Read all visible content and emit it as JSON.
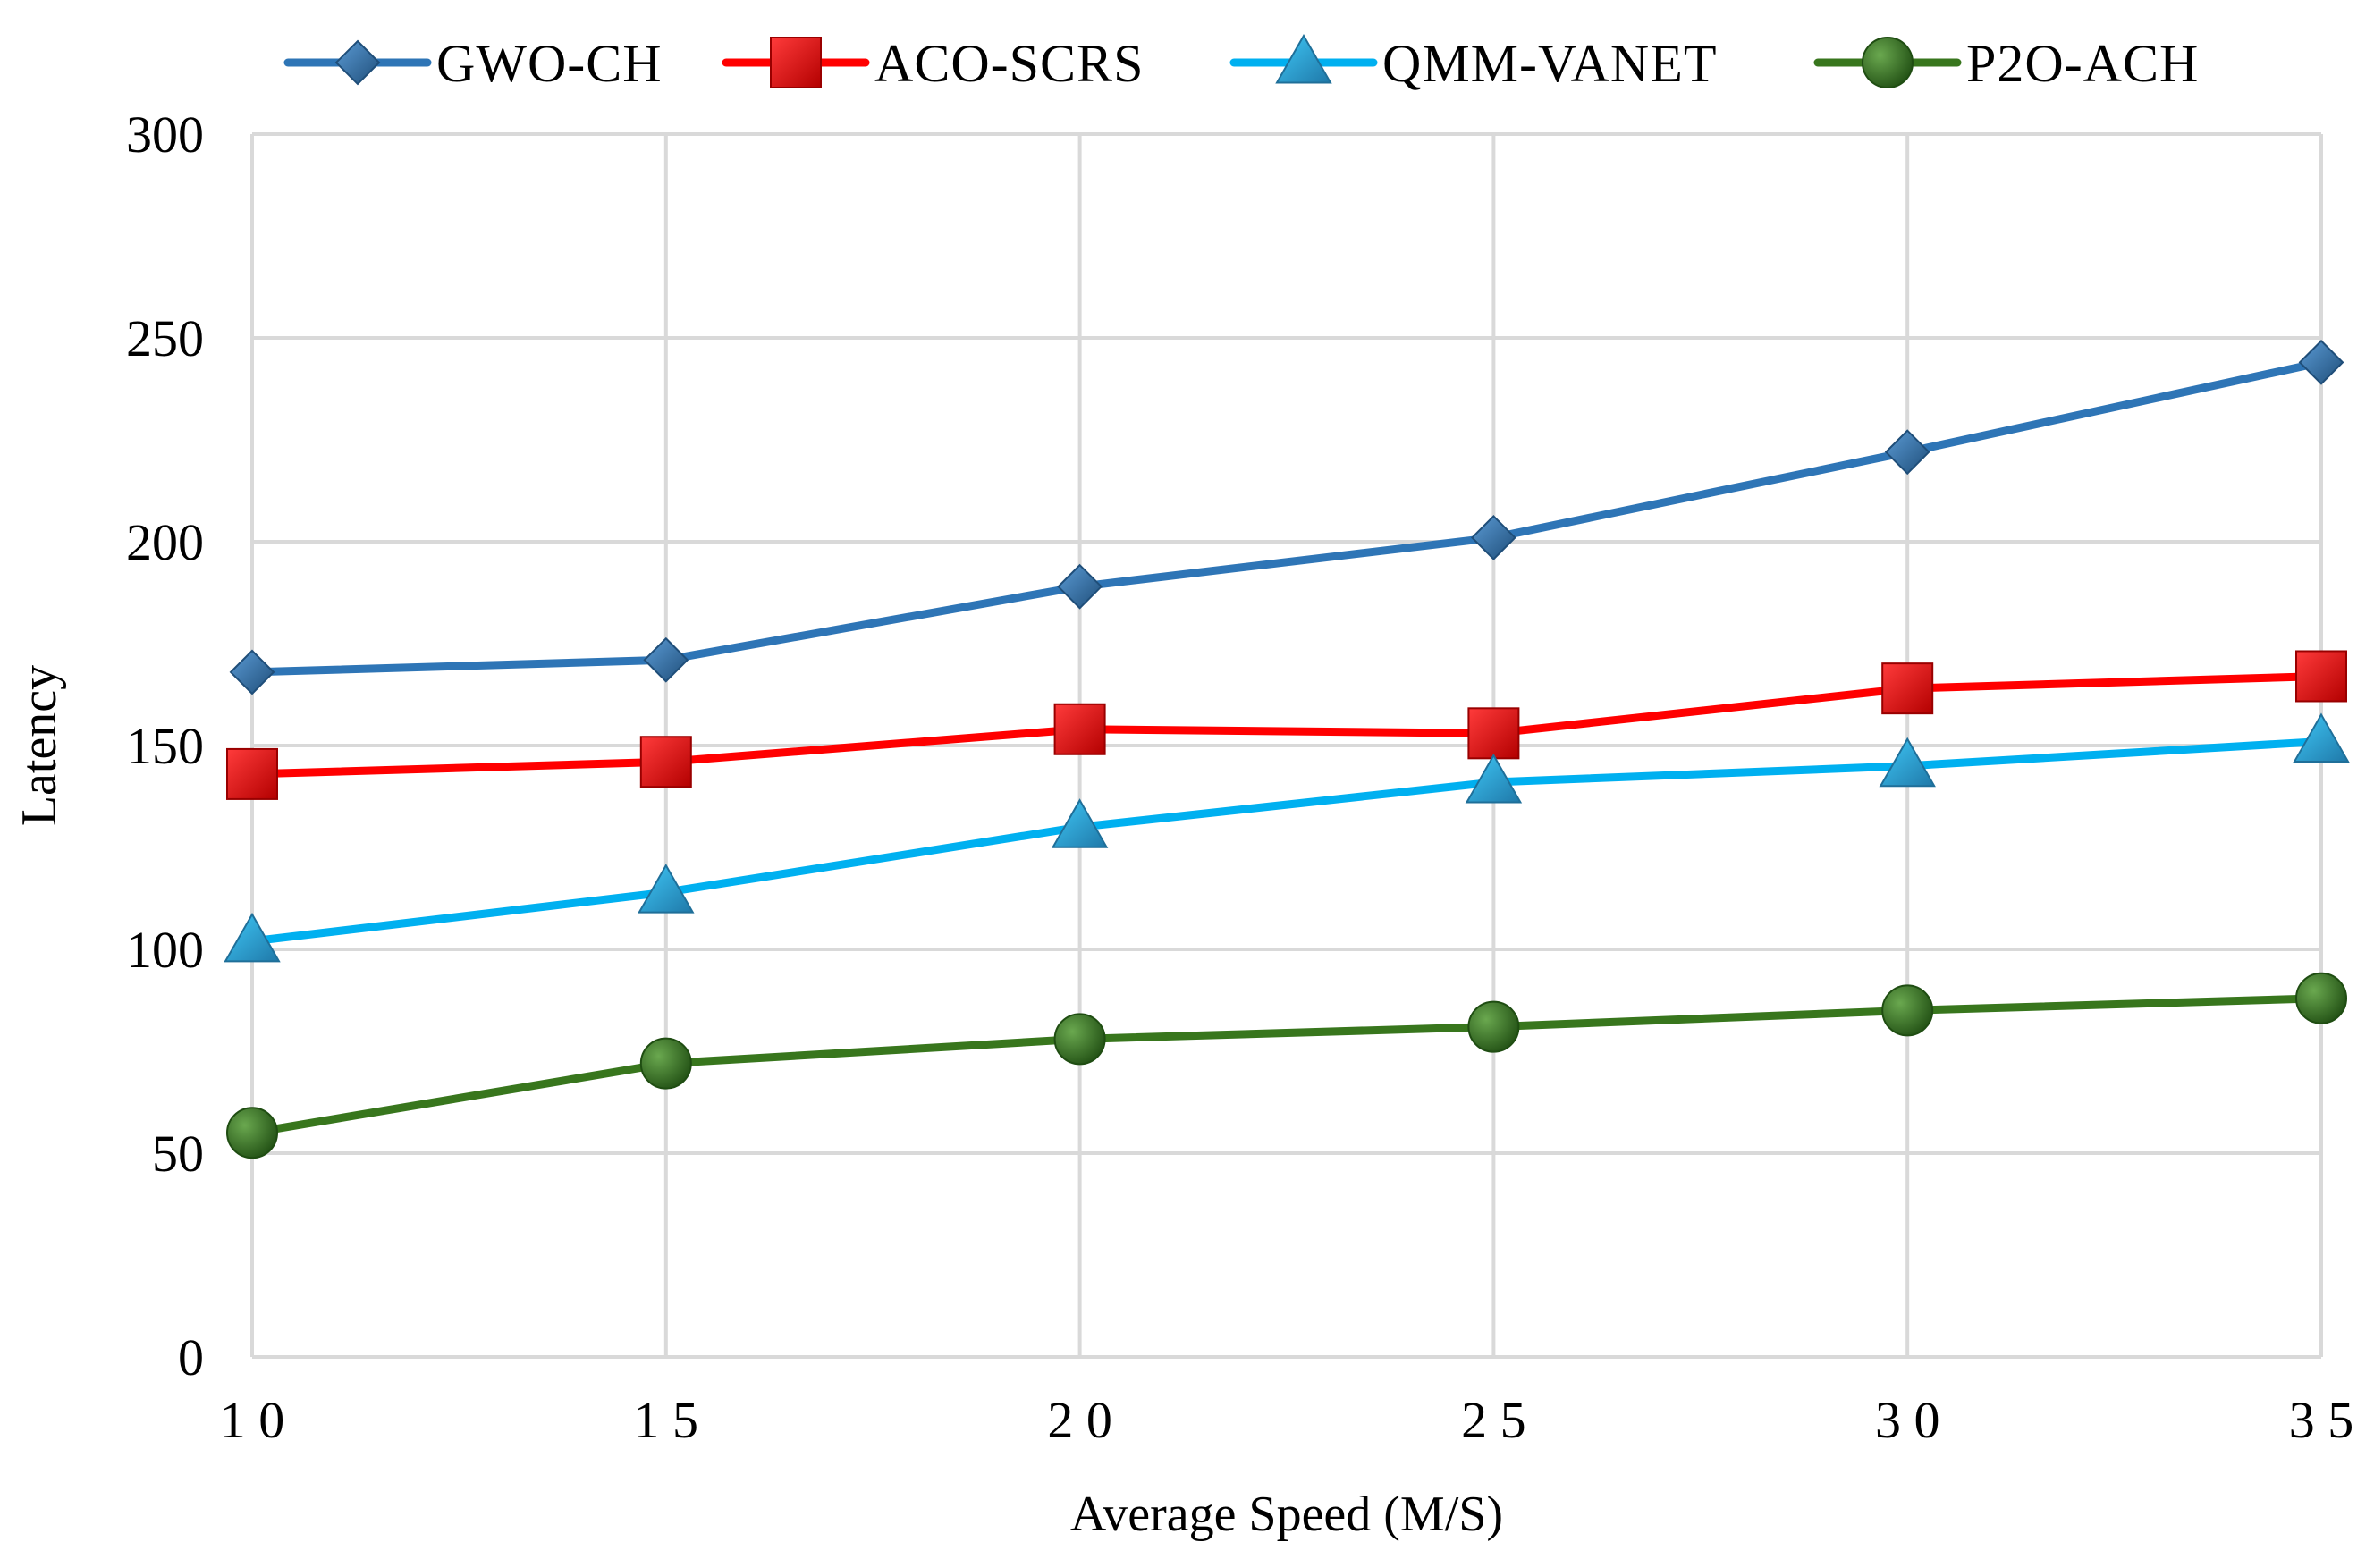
{
  "chart_data": {
    "type": "line",
    "title": "",
    "xlabel": "Average  Speed (M/S)",
    "ylabel": "Latency",
    "x": [
      10,
      15,
      20,
      25,
      30,
      35
    ],
    "x_tick_labels": [
      "1 0",
      "1 5",
      "2 0",
      "2 5",
      "3 0",
      "3 5"
    ],
    "y_ticks": [
      0,
      50,
      100,
      150,
      200,
      250,
      300
    ],
    "y_tick_labels": [
      "0",
      "50",
      "100",
      "150",
      "200",
      "250",
      "300"
    ],
    "xlim": [
      10,
      35
    ],
    "ylim": [
      0,
      300
    ],
    "grid": true,
    "legend_position": "top",
    "series": [
      {
        "name": "GWO-CH",
        "values": [
          168,
          171,
          189,
          201,
          222,
          244
        ],
        "color": "#2E75B6",
        "marker": "diamond"
      },
      {
        "name": "ACO-SCRS",
        "values": [
          143,
          146,
          154,
          153,
          164,
          167
        ],
        "color": "#FF0000",
        "marker": "square"
      },
      {
        "name": "QMM-VANET",
        "values": [
          102,
          114,
          130,
          141,
          145,
          151
        ],
        "color": "#00B0F0",
        "marker": "triangle"
      },
      {
        "name": "P2O-ACH",
        "values": [
          55,
          72,
          78,
          81,
          85,
          88
        ],
        "color": "#38761D",
        "marker": "circle"
      }
    ]
  }
}
